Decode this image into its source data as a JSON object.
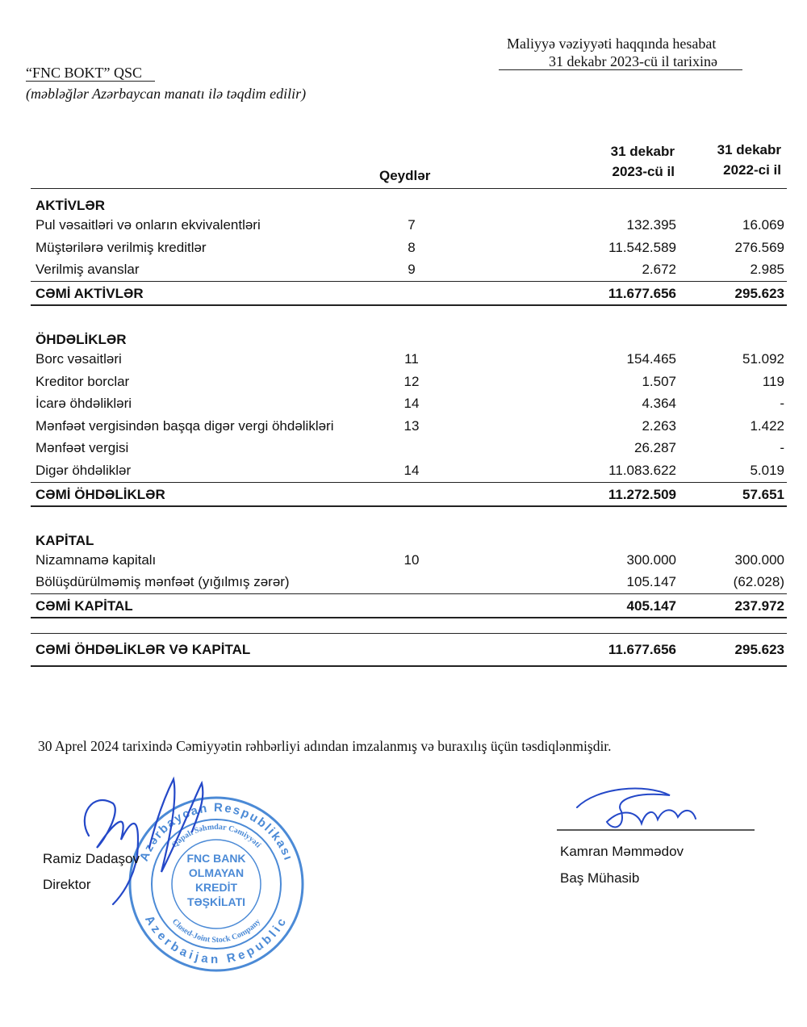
{
  "header": {
    "report_title": "Maliyyə vəziyyəti haqqında hesabat",
    "report_date": "31 dekabr 2023-cü il tarixinə",
    "company": "“FNC BOKT” QSC",
    "currency_note": "(məbləğlər Azərbaycan manatı ilə təqdim edilir)"
  },
  "table": {
    "columns": {
      "notes": "Qeydlər",
      "current": [
        "31 dekabr",
        "2023-cü il"
      ],
      "prior": [
        "31 dekabr",
        "2022-ci il"
      ]
    },
    "sections": [
      {
        "title": "AKTİVLƏR",
        "rows": [
          {
            "label": "Pul vəsaitləri və onların ekvivalentləri",
            "note": "7",
            "current": "132.395",
            "prior": "16.069"
          },
          {
            "label": "Müştərilərə verilmiş kreditlər",
            "note": "8",
            "current": "11.542.589",
            "prior": "276.569"
          },
          {
            "label": "Verilmiş avanslar",
            "note": "9",
            "current": "2.672",
            "prior": "2.985"
          }
        ],
        "total": {
          "label": "CƏMİ AKTİVLƏR",
          "current": "11.677.656",
          "prior": "295.623"
        }
      },
      {
        "title": "ÖHDƏLİKLƏR",
        "rows": [
          {
            "label": "Borc vəsaitləri",
            "note": "11",
            "current": "154.465",
            "prior": "51.092"
          },
          {
            "label": "Kreditor borclar",
            "note": "12",
            "current": "1.507",
            "prior": "119"
          },
          {
            "label": "İcarə öhdəlikləri",
            "note": "14",
            "current": "4.364",
            "prior": "-"
          },
          {
            "label": "Mənfəət vergisindən başqa digər vergi öhdəlikləri",
            "note": "13",
            "current": "2.263",
            "prior": "1.422"
          },
          {
            "label": "Mənfəət vergisi",
            "note": null,
            "current": "26.287",
            "prior": "-"
          },
          {
            "label": "Digər öhdəliklər",
            "note": "14",
            "current": "11.083.622",
            "prior": "5.019"
          }
        ],
        "total": {
          "label": "CƏMİ ÖHDƏLİKLƏR",
          "current": "11.272.509",
          "prior": "57.651"
        }
      },
      {
        "title": "KAPİTAL",
        "rows": [
          {
            "label": "Nizamnamə kapitalı",
            "note": "10",
            "current": "300.000",
            "prior": "300.000"
          },
          {
            "label": "Bölüşdürülməmiş mənfəət (yığılmış zərər)",
            "note": null,
            "current": "105.147",
            "prior": "(62.028)"
          }
        ],
        "total": {
          "label": "CƏMİ KAPİTAL",
          "current": "405.147",
          "prior": "237.972"
        }
      }
    ],
    "grand_total": {
      "label": "CƏMİ ÖHDƏLİKLƏR VƏ KAPİTAL",
      "current": "11.677.656",
      "prior": "295.623"
    }
  },
  "footer": {
    "approval": "30 Aprel 2024 tarixində Cəmiyyətin rəhbərliyi adından imzalanmış və buraxılış üçün təsdiqlənmişdir.",
    "signatories": [
      {
        "name": "Ramiz Dadaşov",
        "title": "Direktor"
      },
      {
        "name": "Kamran Məmmədov",
        "title": "Baş Mühasib"
      }
    ],
    "stamp": {
      "center": [
        "FNC BANK",
        "OLMAYAN",
        "KREDİT",
        "TƏŞKİLATI"
      ],
      "outer_top": "Azərbaycan Respublikası",
      "inner_top": "Qapalı Səhmdar Cəmiyyəti",
      "inner_bottom": "Closed-Joint Stock Company",
      "outer_bottom": "Azerbaijan Republic"
    }
  }
}
